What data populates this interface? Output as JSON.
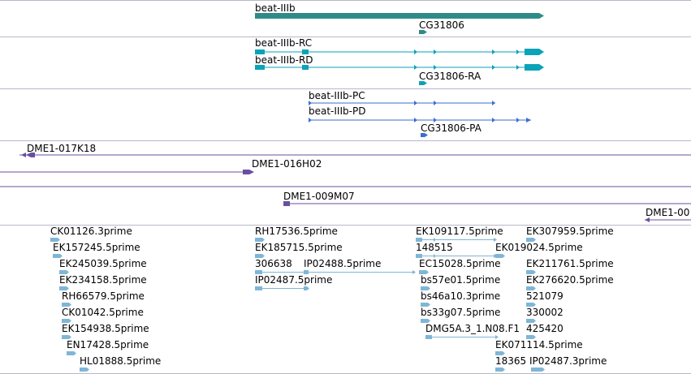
{
  "colors": {
    "gene": "#2e8b87",
    "transcript_rna": "#0aa3b8",
    "transcript_protein": "#3a6ed2",
    "clone": "#6a4fa0",
    "est": "#7fb6d6",
    "separator": "#b8b8c8"
  },
  "tracks": {
    "genes": {
      "items": [
        {
          "label": "beat-IIIb"
        },
        {
          "label": "CG31806"
        }
      ]
    },
    "rna": {
      "items": [
        {
          "label": "beat-IIIb-RC"
        },
        {
          "label": "beat-IIIb-RD"
        },
        {
          "label": "CG31806-RA"
        }
      ]
    },
    "protein": {
      "items": [
        {
          "label": "beat-IIIb-PC"
        },
        {
          "label": "beat-IIIb-PD"
        },
        {
          "label": "CG31806-PA"
        }
      ]
    },
    "clones": {
      "items": [
        {
          "label": "DME1-017K18"
        },
        {
          "label": "DME1-016H02"
        },
        {
          "label": "DME1-009M07"
        },
        {
          "label": "DME1-00"
        }
      ]
    },
    "ests": {
      "items": [
        {
          "label": "CK01126.3prime"
        },
        {
          "label": "EK157245.5prime"
        },
        {
          "label": "EK245039.5prime"
        },
        {
          "label": "EK234158.5prime"
        },
        {
          "label": "RH66579.5prime"
        },
        {
          "label": "CK01042.5prime"
        },
        {
          "label": "EK154938.5prime"
        },
        {
          "label": "EN17428.5prime"
        },
        {
          "label": "HL01888.5prime"
        },
        {
          "label": "RH17536.5prime"
        },
        {
          "label": "EK185715.5prime"
        },
        {
          "label": "306638"
        },
        {
          "label": "IP02488.5prime"
        },
        {
          "label": "IP02487.5prime"
        },
        {
          "label": "EK109117.5prime"
        },
        {
          "label": "148515"
        },
        {
          "label": "EC15028.5prime"
        },
        {
          "label": "bs57e01.5prime"
        },
        {
          "label": "bs46a10.3prime"
        },
        {
          "label": "bs33g07.5prime"
        },
        {
          "label": "DMG5A.3_1.N08.F1"
        },
        {
          "label": "EK307959.5prime"
        },
        {
          "label": "EK019024.5prime"
        },
        {
          "label": "EK211761.5prime"
        },
        {
          "label": "EK276620.5prime"
        },
        {
          "label": "521079"
        },
        {
          "label": "330002"
        },
        {
          "label": "425420"
        },
        {
          "label": "EK071114.5prime"
        },
        {
          "label": "18365"
        },
        {
          "label": "IP02487.3prime"
        }
      ]
    }
  }
}
